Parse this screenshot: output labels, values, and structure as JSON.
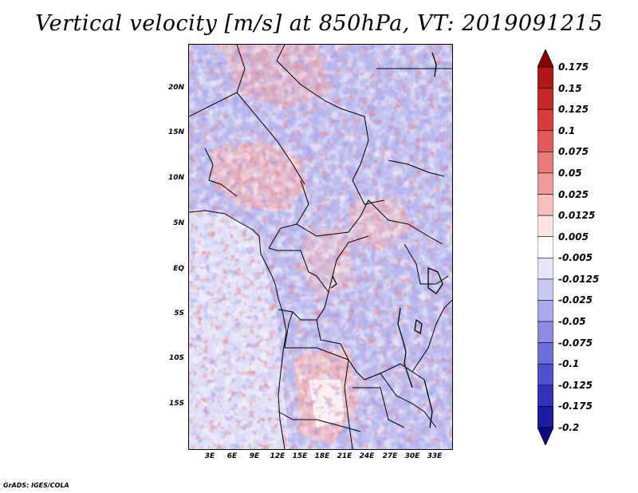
{
  "title": "Vertical velocity [m/s] at 850hPa, VT: 2019091215",
  "footer": "GrADS: IGES/COLA",
  "map": {
    "variable": "Vertical velocity",
    "units": "m/s",
    "level": "850hPa",
    "valid_time": "2019091215",
    "lat_labels": [
      "20N",
      "15N",
      "10N",
      "5N",
      "EQ",
      "5S",
      "10S",
      "15S"
    ],
    "lon_labels": [
      "3E",
      "6E",
      "9E",
      "12E",
      "15E",
      "18E",
      "21E",
      "24E",
      "27E",
      "30E",
      "33E"
    ]
  },
  "colorbar": {
    "labels": [
      "0.175",
      "0.15",
      "0.125",
      "0.1",
      "0.075",
      "0.05",
      "0.025",
      "0.0125",
      "0.005",
      "-0.005",
      "-0.0125",
      "-0.025",
      "-0.05",
      "-0.075",
      "-0.1",
      "-0.125",
      "-0.175",
      "-0.2"
    ],
    "colors": [
      "#8b0000",
      "#b01818",
      "#c82828",
      "#d83c3c",
      "#e05a5a",
      "#e87a7a",
      "#f09a9a",
      "#f6bebe",
      "#fce4e4",
      "#ffffff",
      "#e6e6fa",
      "#c8c8f2",
      "#aaaaee",
      "#8c8ce6",
      "#6e6ede",
      "#5050d0",
      "#3232b8",
      "#1c1ca0",
      "#0a0a82"
    ]
  }
}
